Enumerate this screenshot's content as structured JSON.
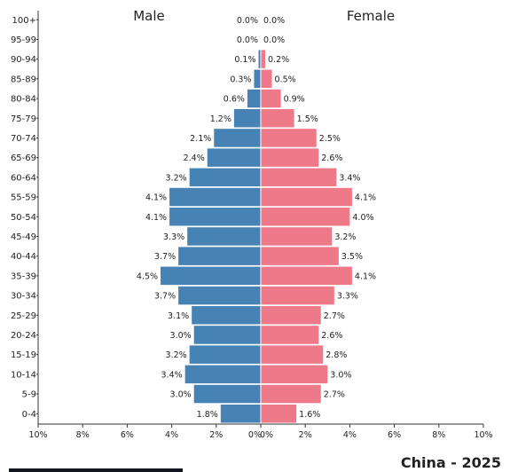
{
  "chart_data": {
    "type": "bar",
    "orientation": "horizontal-population-pyramid",
    "title": "China - 2025",
    "left_label": "Male",
    "right_label": "Female",
    "xlim": [
      -10,
      10
    ],
    "x_ticks": [
      "10%",
      "8%",
      "6%",
      "4%",
      "2%",
      "0%",
      "0%",
      "2%",
      "4%",
      "6%",
      "8%",
      "10%"
    ],
    "categories": [
      "100+",
      "95-99",
      "90-94",
      "85-89",
      "80-84",
      "75-79",
      "70-74",
      "65-69",
      "60-64",
      "55-59",
      "50-54",
      "45-49",
      "40-44",
      "35-39",
      "30-34",
      "25-29",
      "20-24",
      "15-19",
      "10-14",
      "5-9",
      "0-4"
    ],
    "series": [
      {
        "name": "Male",
        "color": "#4682b4",
        "values": [
          0.0,
          0.0,
          0.1,
          0.3,
          0.6,
          1.2,
          2.1,
          2.4,
          3.2,
          4.1,
          4.1,
          3.3,
          3.7,
          4.5,
          3.7,
          3.1,
          3.0,
          3.2,
          3.4,
          3.0,
          1.8
        ],
        "labels": [
          "0.0%",
          "0.0%",
          "0.1%",
          "0.3%",
          "0.6%",
          "1.2%",
          "2.1%",
          "2.4%",
          "3.2%",
          "4.1%",
          "4.1%",
          "3.3%",
          "3.7%",
          "4.5%",
          "3.7%",
          "3.1%",
          "3.0%",
          "3.2%",
          "3.4%",
          "3.0%",
          "1.8%"
        ]
      },
      {
        "name": "Female",
        "color": "#ee7989",
        "values": [
          0.0,
          0.0,
          0.2,
          0.5,
          0.9,
          1.5,
          2.5,
          2.6,
          3.4,
          4.1,
          4.0,
          3.2,
          3.5,
          4.1,
          3.3,
          2.7,
          2.6,
          2.8,
          3.0,
          2.7,
          1.6
        ],
        "labels": [
          "0.0%",
          "0.0%",
          "0.2%",
          "0.5%",
          "0.9%",
          "1.5%",
          "2.5%",
          "2.6%",
          "3.4%",
          "4.1%",
          "4.0%",
          "3.2%",
          "3.5%",
          "4.1%",
          "3.3%",
          "2.7%",
          "2.6%",
          "2.8%",
          "3.0%",
          "2.7%",
          "1.6%"
        ]
      }
    ]
  }
}
